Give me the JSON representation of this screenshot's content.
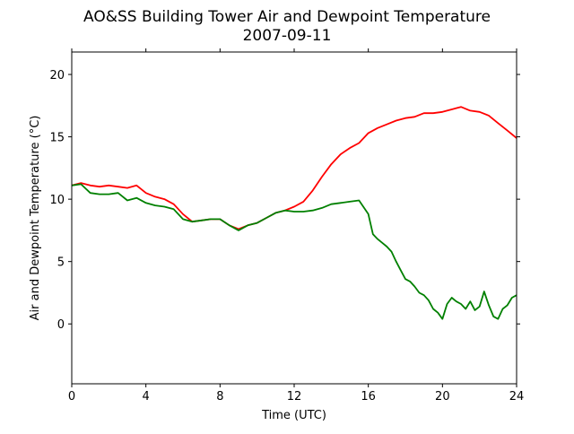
{
  "chart_data": {
    "type": "line",
    "title": "AO&SS Building Tower Air and Dewpoint Temperature",
    "subtitle": "2007-09-11",
    "xlabel": "Time (UTC)",
    "ylabel": "Air and Dewpoint Temperature (°C)",
    "xlim": [
      0,
      24
    ],
    "ylim": [
      -4.8,
      21.8
    ],
    "xticks": [
      0,
      4,
      8,
      12,
      16,
      20,
      24
    ],
    "yticks": [
      0,
      5,
      10,
      15,
      20
    ],
    "grid": false,
    "legend": "none",
    "series": [
      {
        "color": "#ff0000",
        "x": [
          0,
          0.5,
          1,
          1.5,
          2,
          2.5,
          3,
          3.5,
          4,
          4.5,
          5,
          5.5,
          6,
          6.5,
          7,
          7.5,
          8,
          8.5,
          9,
          9.5,
          10,
          10.5,
          11,
          11.5,
          12,
          12.5,
          13,
          13.5,
          14,
          14.5,
          15,
          15.5,
          16,
          16.5,
          17,
          17.5,
          18,
          18.5,
          19,
          19.5,
          20,
          20.5,
          21,
          21.5,
          22,
          22.5,
          23,
          23.5,
          24
        ],
        "y": [
          11.1,
          11.3,
          11.1,
          11.0,
          11.1,
          11.0,
          10.9,
          11.1,
          10.5,
          10.2,
          10.0,
          9.6,
          8.8,
          8.2,
          8.3,
          8.4,
          8.4,
          7.9,
          7.6,
          7.9,
          8.1,
          8.5,
          8.9,
          9.1,
          9.4,
          9.8,
          10.7,
          11.8,
          12.8,
          13.6,
          14.1,
          14.5,
          15.3,
          15.7,
          16.0,
          16.3,
          16.5,
          16.6,
          16.9,
          16.9,
          17.0,
          17.2,
          17.4,
          17.1,
          17.0,
          16.7,
          16.1,
          15.5,
          14.9
        ]
      },
      {
        "color": "#008000",
        "x": [
          0,
          0.5,
          1,
          1.5,
          2,
          2.5,
          3,
          3.5,
          4,
          4.5,
          5,
          5.5,
          6,
          6.5,
          7,
          7.5,
          8,
          8.5,
          9,
          9.5,
          10,
          10.5,
          11,
          11.5,
          12,
          12.5,
          13,
          13.5,
          14,
          14.5,
          15,
          15.5,
          16,
          16.25,
          16.5,
          16.75,
          17,
          17.25,
          17.5,
          17.75,
          18,
          18.25,
          18.5,
          18.75,
          19,
          19.25,
          19.5,
          19.75,
          20,
          20.25,
          20.5,
          20.75,
          21,
          21.25,
          21.5,
          21.75,
          22,
          22.25,
          22.5,
          22.75,
          23,
          23.25,
          23.5,
          23.75,
          24
        ],
        "y": [
          11.1,
          11.2,
          10.5,
          10.4,
          10.4,
          10.5,
          9.9,
          10.1,
          9.7,
          9.5,
          9.4,
          9.2,
          8.4,
          8.2,
          8.3,
          8.4,
          8.4,
          7.9,
          7.5,
          7.9,
          8.1,
          8.5,
          8.9,
          9.1,
          9.0,
          9.0,
          9.1,
          9.3,
          9.6,
          9.7,
          9.8,
          9.9,
          8.8,
          7.2,
          6.8,
          6.5,
          6.2,
          5.8,
          5.0,
          4.3,
          3.6,
          3.4,
          3.0,
          2.5,
          2.3,
          1.9,
          1.2,
          0.9,
          0.4,
          1.6,
          2.1,
          1.8,
          1.6,
          1.2,
          1.8,
          1.1,
          1.4,
          2.6,
          1.5,
          0.6,
          0.4,
          1.2,
          1.5,
          2.1,
          2.3
        ]
      }
    ]
  }
}
